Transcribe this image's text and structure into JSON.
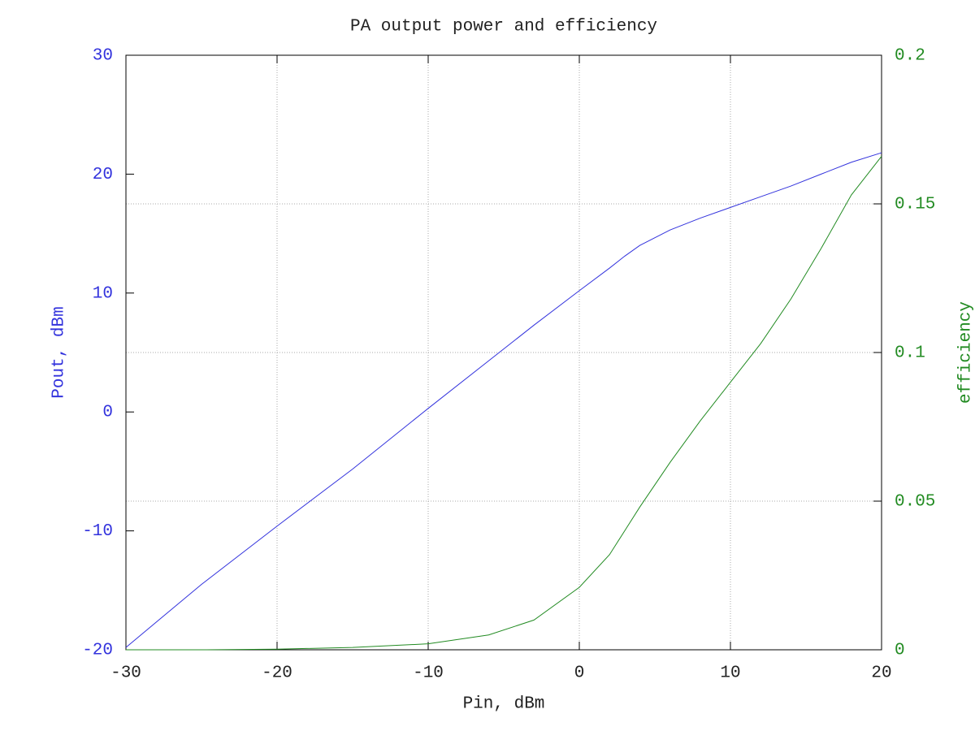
{
  "chart_data": {
    "type": "line",
    "title": "PA output power and efficiency",
    "x_label": "Pin, dBm",
    "y_label": "Pout, dBm",
    "y2_label": "efficiency",
    "x": [
      -30,
      -25,
      -20,
      -15,
      -10,
      -6,
      -3,
      0,
      2,
      3,
      4,
      6,
      8,
      10,
      12,
      14,
      16,
      18,
      20
    ],
    "series": [
      {
        "name": "Pout",
        "color": "#3333dd",
        "axis": "y",
        "values": [
          -19.8,
          -14.5,
          -9.6,
          -4.8,
          0.3,
          4.3,
          7.3,
          10.2,
          12.1,
          13.1,
          14.0,
          15.3,
          16.3,
          17.2,
          18.1,
          19.0,
          20.0,
          21.0,
          21.8
        ]
      },
      {
        "name": "efficiency",
        "color": "#228b22",
        "axis": "y2",
        "values": [
          0,
          0,
          0.0002,
          0.0008,
          0.002,
          0.005,
          0.01,
          0.021,
          0.032,
          0.04,
          0.048,
          0.063,
          0.077,
          0.09,
          0.103,
          0.118,
          0.135,
          0.153,
          0.166
        ]
      }
    ],
    "xlim": [
      -30,
      20
    ],
    "xticks": [
      -30,
      -20,
      -10,
      0,
      10,
      20
    ],
    "ylim": [
      -20,
      30
    ],
    "yticks": [
      -20,
      -10,
      0,
      10,
      20,
      30
    ],
    "y2lim": [
      0,
      0.2
    ],
    "y2ticks": [
      0,
      0.05,
      0.1,
      0.15,
      0.2
    ],
    "grid": {
      "x": true,
      "y2": true
    }
  }
}
